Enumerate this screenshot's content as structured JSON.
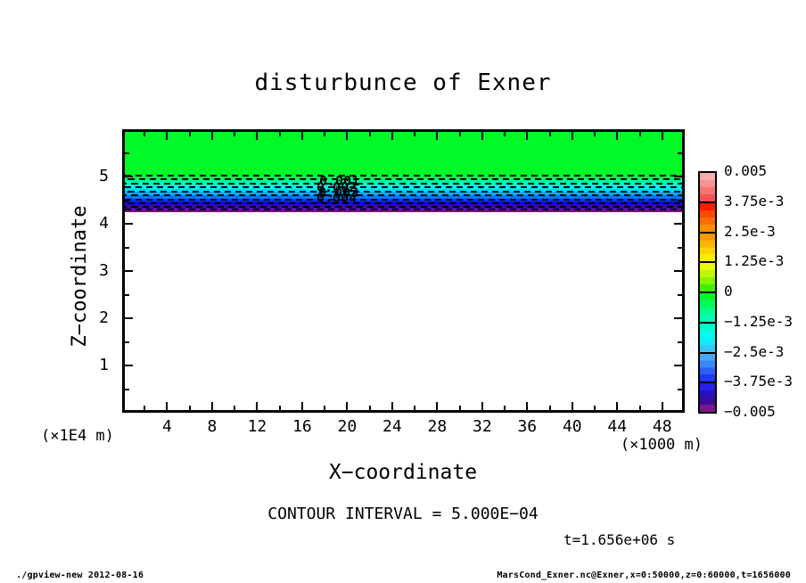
{
  "title": "disturbunce of Exner",
  "axes": {
    "x_label": "X−coordinate",
    "y_label": "Z−coordinate",
    "x_units": "(×1000 m)",
    "y_units": "(×1E4 m)",
    "x_tick_labels": [
      "4",
      "8",
      "12",
      "16",
      "20",
      "24",
      "28",
      "32",
      "36",
      "40",
      "44",
      "48"
    ],
    "y_tick_labels": [
      "5",
      "4",
      "3",
      "2",
      "1"
    ]
  },
  "annotations": {
    "contour_interval": "CONTOUR INTERVAL = 5.000E−04",
    "time": "t=1.656e+06 s"
  },
  "footer": {
    "left": "./gpview-new  2012-08-16",
    "right": "MarsCond_Exner.nc@Exner,x=0:50000,z=0:60000,t=1656000"
  },
  "contour_labels": [
    "0.001",
    "0.002",
    "0.003",
    "0.004"
  ],
  "plot_fill": {
    "zero_band_color": "#00FA28",
    "gradient_colors": [
      "#00FD54",
      "#00FE90",
      "#00FFC4",
      "#00F4F0",
      "#00DCFC",
      "#00B0FE",
      "#0078FE",
      "#003CFE",
      "#1408E4",
      "#3A0AB4",
      "#760E8E"
    ]
  },
  "colorbar": {
    "labels": [
      "0.005",
      "3.75e-3",
      "2.5e-3",
      "1.25e-3",
      "0",
      "−1.25e-3",
      "−2.5e-3",
      "−3.75e-3",
      "−0.005"
    ],
    "sections": [
      [
        "#FAACAC",
        "#F99292",
        "#F87474",
        "#F75252"
      ],
      [
        "#FB1C00",
        "#FC4800",
        "#FD6C00",
        "#FD8C00"
      ],
      [
        "#FD9600",
        "#FEB400",
        "#FED200",
        "#FEEC00"
      ],
      [
        "#ECFA00",
        "#BCF800",
        "#84F600",
        "#40F200"
      ],
      [
        "#00FA28",
        "#00FB5C",
        "#00FC8C",
        "#00FDB4"
      ],
      [
        "#00FECC",
        "#00FEE8",
        "#10ECFA",
        "#38C8F8"
      ],
      [
        "#48A8F8",
        "#3888F8",
        "#2860F8",
        "#2038F8"
      ],
      [
        "#2420E8",
        "#2810C0",
        "#3C0C98",
        "#7C1690"
      ]
    ]
  },
  "chart_data": {
    "type": "heatmap",
    "title": "disturbunce of Exner",
    "xlabel": "X−coordinate (×1000 m)",
    "ylabel": "Z−coordinate (×1E4 m)",
    "xlim": [
      0,
      50
    ],
    "ylim": [
      0,
      6
    ],
    "x_ticks_major": [
      4,
      8,
      12,
      16,
      20,
      24,
      28,
      32,
      36,
      40,
      44,
      48
    ],
    "x_tick_minor_step": 2,
    "y_ticks_major": [
      1,
      2,
      3,
      4,
      5
    ],
    "y_tick_minor_step": 0.5,
    "colorbar_levels": [
      -0.005,
      -0.00375,
      -0.0025,
      -0.00125,
      0,
      0.00125,
      0.0025,
      0.00375,
      0.005
    ],
    "contour_interval": 0.0005,
    "time_seconds": 1656000,
    "dashed_contour_z": [
      5.02,
      4.94,
      4.85,
      4.77,
      4.68,
      4.6,
      4.51,
      4.43,
      4.36,
      4.3
    ],
    "field_profile": {
      "note": "field is uniform along x; vertical profile of Exner disturbance",
      "z": [
        6.0,
        5.0,
        4.9,
        4.8,
        4.7,
        4.6,
        4.5,
        4.45,
        4.3
      ],
      "value": [
        0,
        0,
        -0.0005,
        -0.0014,
        -0.0022,
        -0.0031,
        -0.004,
        -0.005,
        -0.005
      ],
      "below_z_4.3": "no data (white)"
    },
    "legend_position": "right colorbar",
    "grid": false
  }
}
